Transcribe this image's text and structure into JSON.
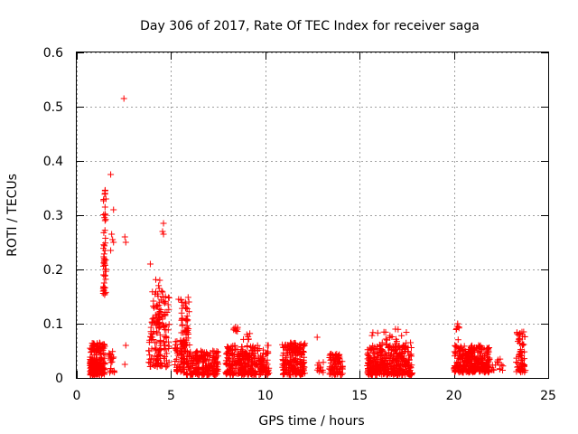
{
  "chart_data": {
    "type": "scatter",
    "title": "Day 306 of 2017, Rate Of TEC Index for receiver saga",
    "xlabel": "GPS time / hours",
    "ylabel": "ROTI / TECUs",
    "xlim": [
      0,
      25
    ],
    "ylim": [
      0,
      0.6
    ],
    "xticks": [
      "0",
      "5",
      "10",
      "15",
      "20",
      "25"
    ],
    "yticks": [
      "0",
      "0.1",
      "0.2",
      "0.3",
      "0.4",
      "0.5",
      "0.6"
    ],
    "grid": true,
    "marker": "+",
    "color": "#ff0000",
    "clusters": [
      {
        "x": [
          0.7,
          1.5
        ],
        "y": [
          0.005,
          0.065
        ],
        "n": 220
      },
      {
        "x": [
          1.4,
          1.55
        ],
        "y": [
          0.15,
          0.35
        ],
        "n": 40
      },
      {
        "x": [
          1.7,
          2.0
        ],
        "y": [
          0.01,
          0.05
        ],
        "n": 20
      },
      {
        "x": [
          3.8,
          4.3
        ],
        "y": [
          0.02,
          0.11
        ],
        "n": 50
      },
      {
        "x": [
          4.0,
          4.4
        ],
        "y": [
          0.1,
          0.19
        ],
        "n": 35
      },
      {
        "x": [
          4.3,
          4.9
        ],
        "y": [
          0.02,
          0.16
        ],
        "n": 80
      },
      {
        "x": [
          5.2,
          5.8
        ],
        "y": [
          0.01,
          0.07
        ],
        "n": 70
      },
      {
        "x": [
          5.5,
          6.0
        ],
        "y": [
          0.06,
          0.15
        ],
        "n": 50
      },
      {
        "x": [
          5.8,
          7.5
        ],
        "y": [
          0.005,
          0.05
        ],
        "n": 220
      },
      {
        "x": [
          7.9,
          10.2
        ],
        "y": [
          0.005,
          0.06
        ],
        "n": 320
      },
      {
        "x": [
          8.3,
          8.6
        ],
        "y": [
          0.085,
          0.095
        ],
        "n": 8
      },
      {
        "x": [
          8.8,
          9.2
        ],
        "y": [
          0.07,
          0.09
        ],
        "n": 6
      },
      {
        "x": [
          10.9,
          12.1
        ],
        "y": [
          0.005,
          0.065
        ],
        "n": 200
      },
      {
        "x": [
          12.7,
          13.1
        ],
        "y": [
          0.01,
          0.04
        ],
        "n": 10
      },
      {
        "x": [
          13.4,
          14.1
        ],
        "y": [
          0.005,
          0.045
        ],
        "n": 80
      },
      {
        "x": [
          15.4,
          17.8
        ],
        "y": [
          0.005,
          0.06
        ],
        "n": 380
      },
      {
        "x": [
          15.6,
          17.6
        ],
        "y": [
          0.055,
          0.09
        ],
        "n": 25
      },
      {
        "x": [
          20.0,
          21.9
        ],
        "y": [
          0.01,
          0.06
        ],
        "n": 320
      },
      {
        "x": [
          20.1,
          20.4
        ],
        "y": [
          0.07,
          0.1
        ],
        "n": 6
      },
      {
        "x": [
          22.0,
          22.6
        ],
        "y": [
          0.01,
          0.035
        ],
        "n": 12
      },
      {
        "x": [
          23.3,
          23.8
        ],
        "y": [
          0.01,
          0.085
        ],
        "n": 60
      }
    ],
    "points": [
      {
        "x": 1.4,
        "y": 0.16
      },
      {
        "x": 1.45,
        "y": 0.175
      },
      {
        "x": 1.42,
        "y": 0.19
      },
      {
        "x": 1.5,
        "y": 0.2
      },
      {
        "x": 1.48,
        "y": 0.21
      },
      {
        "x": 1.45,
        "y": 0.22
      },
      {
        "x": 1.5,
        "y": 0.235
      },
      {
        "x": 1.5,
        "y": 0.29
      },
      {
        "x": 1.52,
        "y": 0.3
      },
      {
        "x": 1.5,
        "y": 0.315
      },
      {
        "x": 1.55,
        "y": 0.33
      },
      {
        "x": 1.5,
        "y": 0.345
      },
      {
        "x": 1.8,
        "y": 0.375
      },
      {
        "x": 1.95,
        "y": 0.31
      },
      {
        "x": 1.85,
        "y": 0.265
      },
      {
        "x": 1.8,
        "y": 0.235
      },
      {
        "x": 1.9,
        "y": 0.255
      },
      {
        "x": 1.95,
        "y": 0.25
      },
      {
        "x": 2.5,
        "y": 0.515
      },
      {
        "x": 2.55,
        "y": 0.26
      },
      {
        "x": 2.6,
        "y": 0.25
      },
      {
        "x": 2.6,
        "y": 0.06
      },
      {
        "x": 2.55,
        "y": 0.025
      },
      {
        "x": 3.9,
        "y": 0.21
      },
      {
        "x": 4.6,
        "y": 0.285
      },
      {
        "x": 4.55,
        "y": 0.27
      },
      {
        "x": 4.6,
        "y": 0.265
      },
      {
        "x": 4.4,
        "y": 0.18
      },
      {
        "x": 4.5,
        "y": 0.16
      },
      {
        "x": 4.7,
        "y": 0.15
      },
      {
        "x": 4.6,
        "y": 0.14
      },
      {
        "x": 5.4,
        "y": 0.145
      },
      {
        "x": 5.6,
        "y": 0.11
      },
      {
        "x": 12.75,
        "y": 0.075
      },
      {
        "x": 12.9,
        "y": 0.02
      },
      {
        "x": 16.2,
        "y": 0.065
      },
      {
        "x": 16.9,
        "y": 0.09
      },
      {
        "x": 17.7,
        "y": 0.065
      },
      {
        "x": 20.2,
        "y": 0.1
      },
      {
        "x": 23.7,
        "y": 0.085
      },
      {
        "x": 23.5,
        "y": 0.07
      },
      {
        "x": 22.3,
        "y": 0.03
      },
      {
        "x": 22.6,
        "y": 0.022
      }
    ]
  }
}
